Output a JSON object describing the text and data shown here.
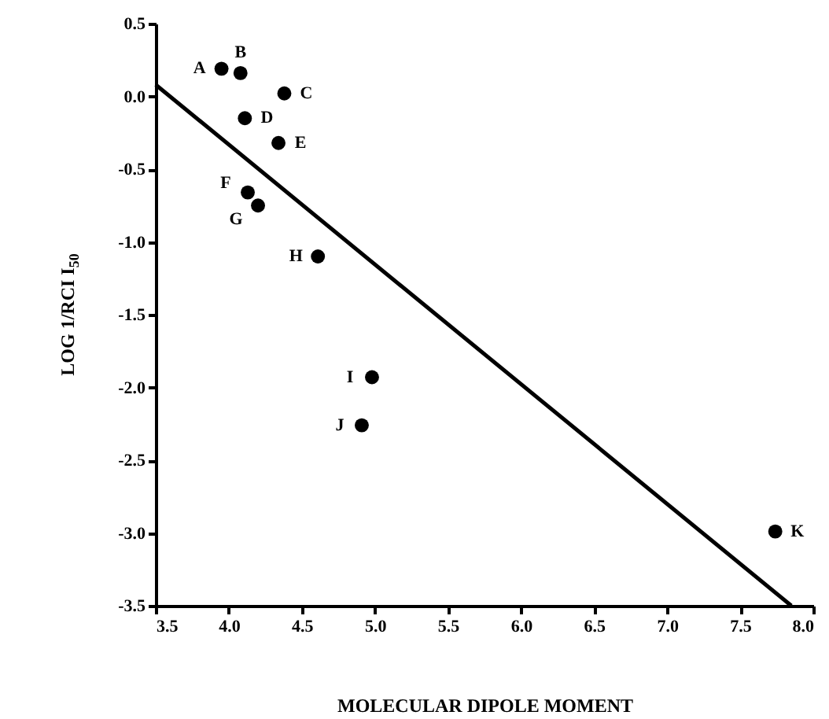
{
  "chart_data": {
    "type": "scatter",
    "xlabel": "MOLECULAR DIPOLE MOMENT",
    "ylabel": "LOG 1/RCI I$_{50}$",
    "xlim": [
      3.5,
      8.0
    ],
    "ylim": [
      -3.5,
      0.5
    ],
    "xticks": [
      3.5,
      {
        "value": 4,
        "label": "4.0"
      },
      4.5,
      {
        "value": 5,
        "label": "5.0"
      },
      5.5,
      {
        "value": 6,
        "label": "6.0"
      },
      6.5,
      {
        "value": 7,
        "label": "7.0"
      },
      7.5,
      {
        "value": 8,
        "label": "8.0"
      }
    ],
    "yticks": [
      0.5,
      {
        "value": 0,
        "label": "0.0"
      },
      -0.5,
      {
        "value": -1,
        "label": "-1.0"
      },
      -1.5,
      {
        "value": -2,
        "label": "-2.0"
      },
      -2.5,
      {
        "value": -3,
        "label": "-3.0"
      },
      -3.5
    ],
    "grid": false,
    "series": [
      {
        "color": "#000000",
        "marker": "circle",
        "x": [
          3.95,
          4.08,
          4.38,
          4.11,
          4.34,
          4.13,
          4.2,
          4.61,
          4.98,
          4.91,
          7.74
        ],
        "values": [
          0.19,
          0.16,
          0.02,
          -0.15,
          -0.32,
          -0.66,
          -0.75,
          -1.1,
          -1.93,
          -2.26,
          -2.99
        ]
      },
      {
        "type": "line",
        "color": "#000000",
        "x": [
          3.5,
          7.85
        ],
        "values": [
          0.08,
          -3.5
        ]
      }
    ],
    "annotations": [
      {
        "text": "A",
        "x": 3.95,
        "y": 0.19
      },
      {
        "text": "B",
        "x": 4.08,
        "y": 0.16
      },
      {
        "text": "C",
        "x": 4.38,
        "y": 0.02
      },
      {
        "text": "D",
        "x": 4.11,
        "y": -0.15
      },
      {
        "text": "E",
        "x": 4.34,
        "y": -0.32
      },
      {
        "text": "F",
        "x": 4.13,
        "y": -0.66
      },
      {
        "text": "G",
        "x": 4.2,
        "y": -0.75
      },
      {
        "text": "H",
        "x": 4.61,
        "y": -1.1
      },
      {
        "text": "I",
        "x": 4.98,
        "y": -1.93
      },
      {
        "text": "J",
        "x": 4.91,
        "y": -2.26
      },
      {
        "text": "K",
        "x": 7.74,
        "y": -2.99
      }
    ]
  }
}
